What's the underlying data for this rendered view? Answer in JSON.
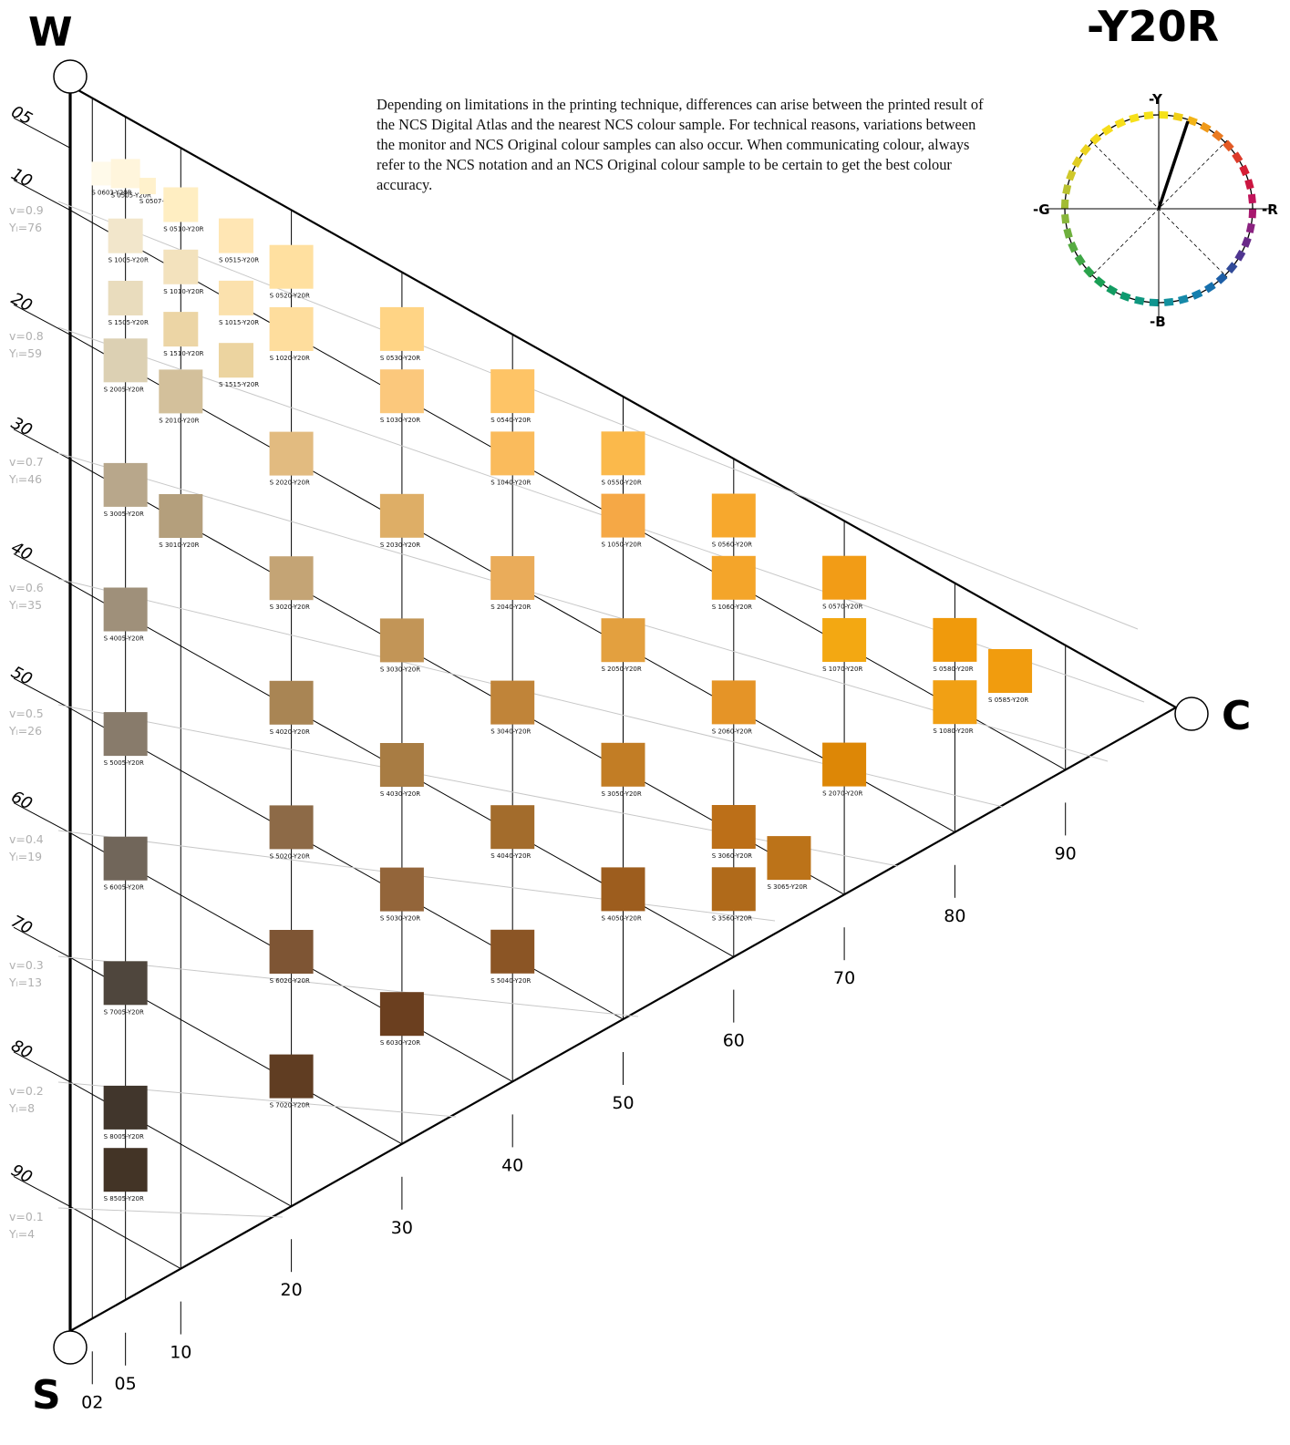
{
  "hue_title": "-Y20R",
  "corners": {
    "white": "W",
    "black": "S",
    "chromatic": "C"
  },
  "disclaimer": "Depending on limitations in the printing technique, differences can arise between the printed result of the NCS Digital Atlas and the nearest NCS colour sample. For technical reasons, variations between the monitor and NCS Original colour samples can also occur. When communicating colour, always refer to the NCS notation and an NCS Original colour sample to be certain to get the best colour accuracy.",
  "blackness_scale": [
    "05",
    "10",
    "20",
    "30",
    "40",
    "50",
    "60",
    "70",
    "80",
    "90"
  ],
  "chromaticness_scale": [
    "02",
    "05",
    "10",
    "20",
    "30",
    "40",
    "50",
    "60",
    "70",
    "80",
    "90"
  ],
  "lightness_values": [
    {
      "v": "v=0.9",
      "y": "Yₗ=76"
    },
    {
      "v": "v=0.8",
      "y": "Yₗ=59"
    },
    {
      "v": "v=0.7",
      "y": "Yₗ=46"
    },
    {
      "v": "v=0.6",
      "y": "Yₗ=35"
    },
    {
      "v": "v=0.5",
      "y": "Yₗ=26"
    },
    {
      "v": "v=0.4",
      "y": "Yₗ=19"
    },
    {
      "v": "v=0.3",
      "y": "Yₗ=13"
    },
    {
      "v": "v=0.2",
      "y": "Yₗ=8"
    },
    {
      "v": "v=0.1",
      "y": "Yₗ=4"
    }
  ],
  "hue_circle": {
    "labels": {
      "top": "-Y",
      "right": "-R",
      "bottom": "-B",
      "left": "-G"
    },
    "pointer_hue": "Y20R"
  },
  "samples": [
    {
      "label": "S 0603-Y20R",
      "s": 6,
      "c": 3,
      "color": "#fffaea"
    },
    {
      "label": "S 0505-Y20R",
      "s": 5,
      "c": 5,
      "color": "#fff5dc"
    },
    {
      "label": "S 0507-Y20R",
      "s": 5,
      "c": 7,
      "color": "#fff1cc"
    },
    {
      "label": "S 0510-Y20R",
      "s": 5,
      "c": 10,
      "color": "#ffeec2"
    },
    {
      "label": "S 0515-Y20R",
      "s": 5,
      "c": 15,
      "color": "#ffe6b4"
    },
    {
      "label": "S 0520-Y20R",
      "s": 5,
      "c": 20,
      "color": "#ffe0a0"
    },
    {
      "label": "S 0530-Y20R",
      "s": 5,
      "c": 30,
      "color": "#ffd485"
    },
    {
      "label": "S 0540-Y20R",
      "s": 5,
      "c": 40,
      "color": "#fec466"
    },
    {
      "label": "S 0550-Y20R",
      "s": 5,
      "c": 50,
      "color": "#fbb94b"
    },
    {
      "label": "S 0560-Y20R",
      "s": 5,
      "c": 60,
      "color": "#f7a82d"
    },
    {
      "label": "S 0570-Y20R",
      "s": 5,
      "c": 70,
      "color": "#f29c16"
    },
    {
      "label": "S 0580-Y20R",
      "s": 5,
      "c": 80,
      "color": "#f09a0c"
    },
    {
      "label": "S 0585-Y20R",
      "s": 5,
      "c": 85,
      "color": "#f19c0e"
    },
    {
      "label": "S 1005-Y20R",
      "s": 10,
      "c": 5,
      "color": "#f2e6cb"
    },
    {
      "label": "S 1010-Y20R",
      "s": 10,
      "c": 10,
      "color": "#f3e2bd"
    },
    {
      "label": "S 1015-Y20R",
      "s": 10,
      "c": 15,
      "color": "#fbe1ad"
    },
    {
      "label": "S 1020-Y20R",
      "s": 10,
      "c": 20,
      "color": "#fedd9d"
    },
    {
      "label": "S 1030-Y20R",
      "s": 10,
      "c": 30,
      "color": "#fbc87c"
    },
    {
      "label": "S 1040-Y20R",
      "s": 10,
      "c": 40,
      "color": "#fabb5c"
    },
    {
      "label": "S 1050-Y20R",
      "s": 10,
      "c": 50,
      "color": "#f5a846"
    },
    {
      "label": "S 1060-Y20R",
      "s": 10,
      "c": 60,
      "color": "#f4a52a"
    },
    {
      "label": "S 1070-Y20R",
      "s": 10,
      "c": 70,
      "color": "#f3a812"
    },
    {
      "label": "S 1080-Y20R",
      "s": 10,
      "c": 80,
      "color": "#f1a014"
    },
    {
      "label": "S 1505-Y20R",
      "s": 15,
      "c": 5,
      "color": "#e9dcbd"
    },
    {
      "label": "S 1510-Y20R",
      "s": 15,
      "c": 10,
      "color": "#ecd5a5"
    },
    {
      "label": "S 1515-Y20R",
      "s": 15,
      "c": 15,
      "color": "#ecd4a0"
    },
    {
      "label": "S 2005-Y20R",
      "s": 20,
      "c": 5,
      "color": "#dcd0b3"
    },
    {
      "label": "S 2010-Y20R",
      "s": 20,
      "c": 10,
      "color": "#d3c09b"
    },
    {
      "label": "S 2020-Y20R",
      "s": 20,
      "c": 20,
      "color": "#e2bb80"
    },
    {
      "label": "S 2030-Y20R",
      "s": 20,
      "c": 30,
      "color": "#deae66"
    },
    {
      "label": "S 2040-Y20R",
      "s": 20,
      "c": 40,
      "color": "#eaac5a"
    },
    {
      "label": "S 2050-Y20R",
      "s": 20,
      "c": 50,
      "color": "#e3a03f"
    },
    {
      "label": "S 2060-Y20R",
      "s": 20,
      "c": 60,
      "color": "#e59427"
    },
    {
      "label": "S 2070-Y20R",
      "s": 20,
      "c": 70,
      "color": "#dd8706"
    },
    {
      "label": "S 3005-Y20R",
      "s": 30,
      "c": 5,
      "color": "#b8a78b"
    },
    {
      "label": "S 3010-Y20R",
      "s": 30,
      "c": 10,
      "color": "#b49f7c"
    },
    {
      "label": "S 3020-Y20R",
      "s": 30,
      "c": 20,
      "color": "#c4a475"
    },
    {
      "label": "S 3030-Y20R",
      "s": 30,
      "c": 30,
      "color": "#c29557"
    },
    {
      "label": "S 3040-Y20R",
      "s": 30,
      "c": 40,
      "color": "#c08439"
    },
    {
      "label": "S 3050-Y20R",
      "s": 30,
      "c": 50,
      "color": "#c27d25"
    },
    {
      "label": "S 3060-Y20R",
      "s": 30,
      "c": 60,
      "color": "#bc6f18"
    },
    {
      "label": "S 3065-Y20R",
      "s": 30,
      "c": 65,
      "color": "#bc7319"
    },
    {
      "label": "S 3560-Y20R",
      "s": 35,
      "c": 60,
      "color": "#b06a1a"
    },
    {
      "label": "S 4005-Y20R",
      "s": 40,
      "c": 5,
      "color": "#9f907a"
    },
    {
      "label": "S 4020-Y20R",
      "s": 40,
      "c": 20,
      "color": "#a98554"
    },
    {
      "label": "S 4030-Y20R",
      "s": 40,
      "c": 30,
      "color": "#a87c43"
    },
    {
      "label": "S 4040-Y20R",
      "s": 40,
      "c": 40,
      "color": "#a36c2c"
    },
    {
      "label": "S 4050-Y20R",
      "s": 40,
      "c": 50,
      "color": "#9d5d1e"
    },
    {
      "label": "S 5005-Y20R",
      "s": 50,
      "c": 5,
      "color": "#887b6b"
    },
    {
      "label": "S 5020-Y20R",
      "s": 50,
      "c": 20,
      "color": "#8d6a47"
    },
    {
      "label": "S 5030-Y20R",
      "s": 50,
      "c": 30,
      "color": "#93653a"
    },
    {
      "label": "S 5040-Y20R",
      "s": 50,
      "c": 40,
      "color": "#8b5525"
    },
    {
      "label": "S 6005-Y20R",
      "s": 60,
      "c": 5,
      "color": "#71665a"
    },
    {
      "label": "S 6020-Y20R",
      "s": 60,
      "c": 20,
      "color": "#7e5534"
    },
    {
      "label": "S 6030-Y20R",
      "s": 60,
      "c": 30,
      "color": "#6b3f1f"
    },
    {
      "label": "S 7005-Y20R",
      "s": 70,
      "c": 5,
      "color": "#4f463d"
    },
    {
      "label": "S 7020-Y20R",
      "s": 70,
      "c": 20,
      "color": "#603d22"
    },
    {
      "label": "S 8005-Y20R",
      "s": 80,
      "c": 5,
      "color": "#41362c"
    },
    {
      "label": "S 8505-Y20R",
      "s": 85,
      "c": 5,
      "color": "#433426"
    }
  ]
}
